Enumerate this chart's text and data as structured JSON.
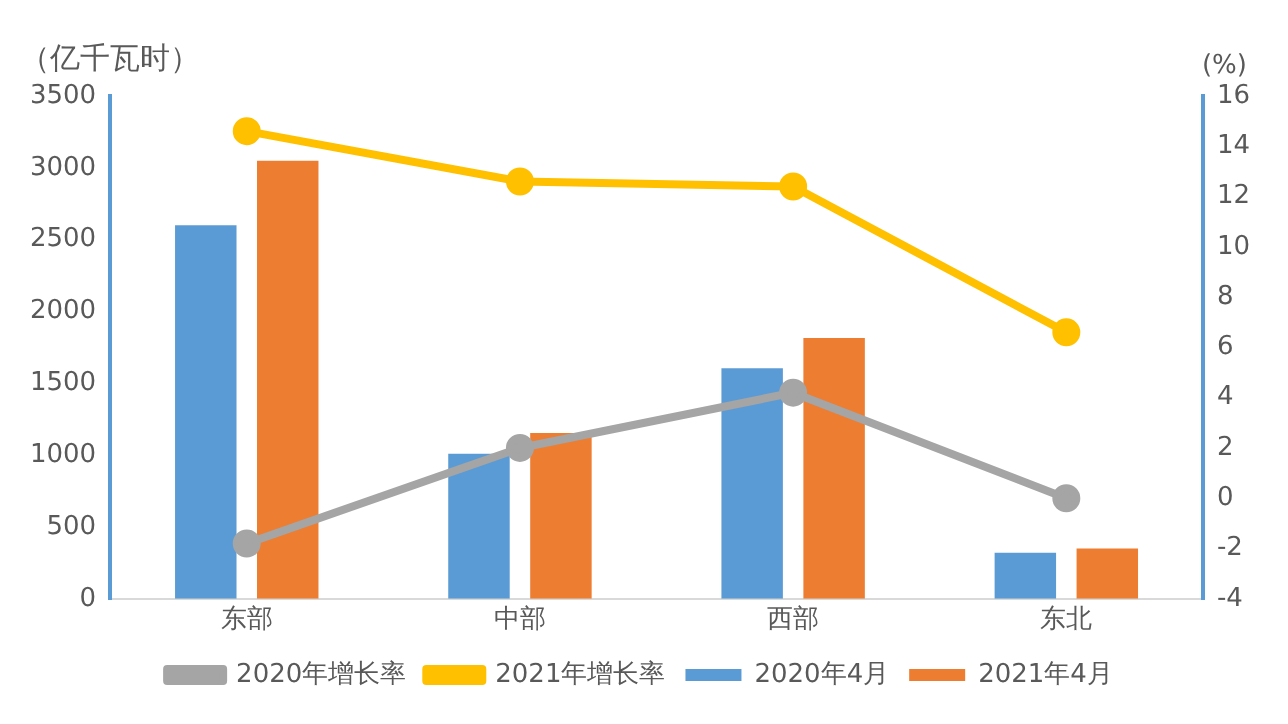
{
  "chart_data": {
    "type": "bar",
    "ylabel": "（亿千瓦时）",
    "y2label": "(%)",
    "categories": [
      "东部",
      "中部",
      "西部",
      "东北"
    ],
    "series": [
      {
        "name": "2020年4月",
        "color": "#5b9bd5",
        "values": [
          2600,
          1010,
          1605,
          320
        ]
      },
      {
        "name": "2021年4月",
        "color": "#ed7d31",
        "values": [
          3050,
          1155,
          1815,
          350
        ]
      },
      {
        "name": "2020年增长率",
        "type": "line",
        "axis": "y2",
        "color": "#a5a5a5",
        "values": [
          -1.8,
          2.0,
          4.2,
          0.0
        ]
      },
      {
        "name": "2021年增长率",
        "type": "line",
        "axis": "y2",
        "color": "#ffc000",
        "values": [
          14.6,
          12.6,
          12.4,
          6.6
        ]
      }
    ],
    "ylim": [
      0,
      3500
    ],
    "yticks": [
      0,
      500,
      1000,
      1500,
      2000,
      2500,
      3000,
      3500
    ],
    "y2lim": [
      -4,
      16
    ],
    "y2ticks": [
      -4,
      -2,
      0,
      2,
      4,
      6,
      8,
      10,
      12,
      14,
      16
    ],
    "grid": false,
    "legend": "bottom",
    "marker": "circle",
    "line_style": "solid"
  }
}
